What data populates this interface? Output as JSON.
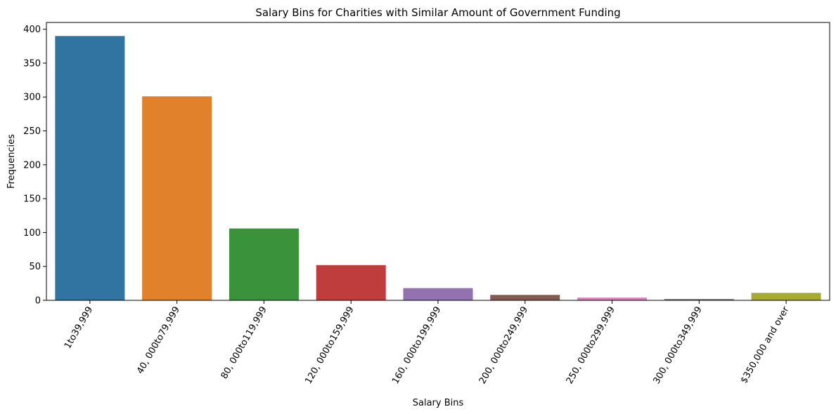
{
  "chart_data": {
    "type": "bar",
    "title": "Salary Bins for Charities with Similar Amount of Government Funding",
    "xlabel": "Salary Bins",
    "ylabel": "Frequencies",
    "ylim": [
      0,
      410
    ],
    "yticks": [
      0,
      50,
      100,
      150,
      200,
      250,
      300,
      350,
      400
    ],
    "categories": [
      "1to39,999",
      "40, 000to79,999",
      "80, 000to119,999",
      "120, 000to159,999",
      "160, 000to199,999",
      "200, 000to249,999",
      "250, 000to299,999",
      "300, 000to349,999",
      "$350,000 and over"
    ],
    "values": [
      390,
      301,
      106,
      52,
      18,
      8,
      4,
      2,
      11
    ],
    "colors": [
      "#3274a1",
      "#e1812c",
      "#3a923a",
      "#c03d3e",
      "#9372b2",
      "#845b53",
      "#d684bd",
      "#7f7f7f",
      "#a9aa35"
    ],
    "grid": false,
    "legend": "none"
  }
}
